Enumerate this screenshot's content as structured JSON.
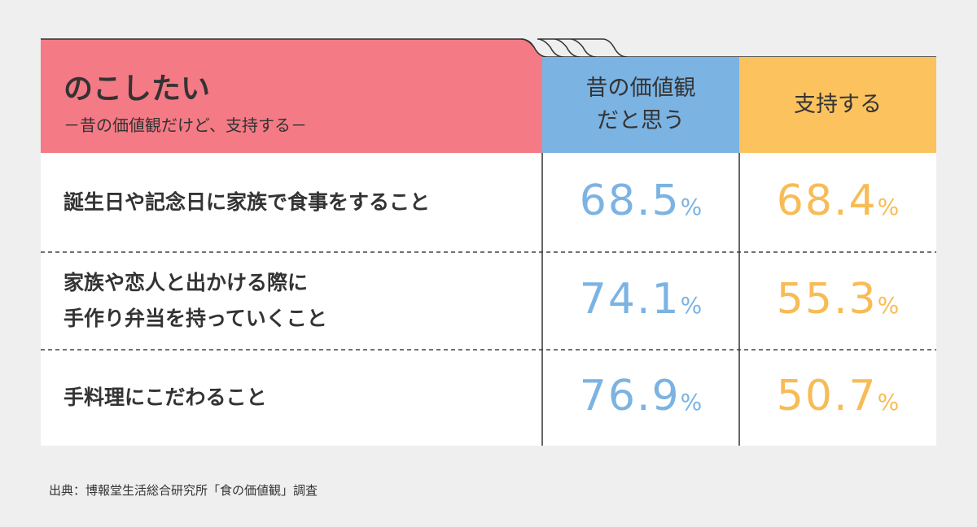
{
  "header": {
    "title": "のこしたい",
    "subtitle": "－昔の価値観だけど、支持する－"
  },
  "columns": [
    [
      "昔の価値観",
      "だと思う"
    ],
    [
      "支持する"
    ]
  ],
  "rows": [
    {
      "label": [
        "誕生日や記念日に家族で食事をすること"
      ],
      "cells": [
        {
          "value": 68.5,
          "unit": "%"
        },
        {
          "value": 68.4,
          "unit": "%"
        }
      ]
    },
    {
      "label": [
        "家族や恋人と出かける際に",
        "手作り弁当を持っていくこと"
      ],
      "cells": [
        {
          "value": 74.1,
          "unit": "%"
        },
        {
          "value": 55.3,
          "unit": "%"
        }
      ]
    },
    {
      "label": [
        "手料理にこだわること"
      ],
      "cells": [
        {
          "value": 76.9,
          "unit": "%"
        },
        {
          "value": 50.7,
          "unit": "%"
        }
      ]
    }
  ],
  "source": "出典：博報堂生活総合研究所「食の価値観」調査"
}
